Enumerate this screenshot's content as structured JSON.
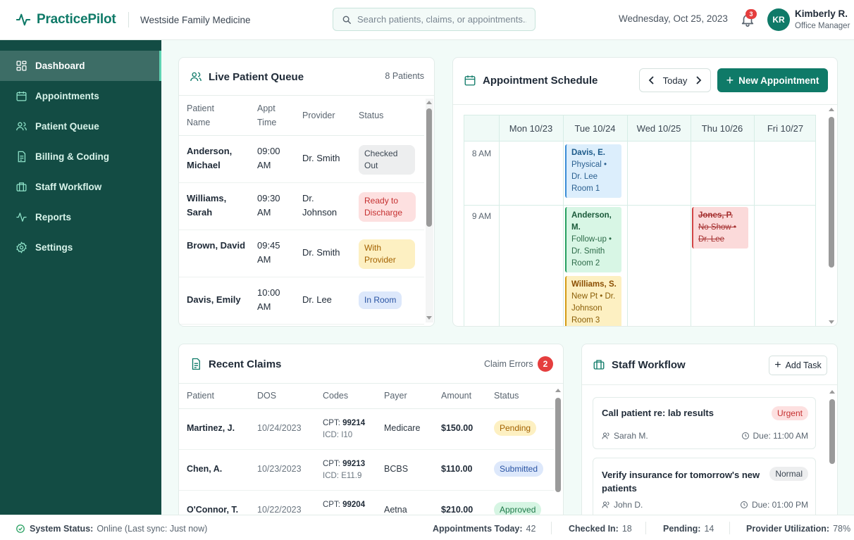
{
  "app": {
    "brand": "PracticePilot",
    "practice": "Westside Family Medicine",
    "search_placeholder": "Search patients, claims, or appointments...",
    "date": "Wednesday, Oct 25, 2023",
    "notifications": "3",
    "user_initials": "KR",
    "user_name": "Kimberly R.",
    "user_role": "Office Manager"
  },
  "sidebar": {
    "items": [
      {
        "label": "Dashboard",
        "icon": "dashboard-icon"
      },
      {
        "label": "Appointments",
        "icon": "calendar-icon"
      },
      {
        "label": "Patient Queue",
        "icon": "users-icon"
      },
      {
        "label": "Billing & Coding",
        "icon": "document-icon"
      },
      {
        "label": "Staff Workflow",
        "icon": "briefcase-icon"
      },
      {
        "label": "Reports",
        "icon": "activity-icon"
      },
      {
        "label": "Settings",
        "icon": "gear-icon"
      }
    ]
  },
  "queue": {
    "title": "Live Patient Queue",
    "count": "8 Patients",
    "headers": [
      "Patient Name",
      "Appt Time",
      "Provider",
      "Status"
    ],
    "rows": [
      {
        "name": "Anderson, Michael",
        "time": "09:00 AM",
        "provider": "Dr. Smith",
        "status": "Checked Out",
        "tone": "gray"
      },
      {
        "name": "Williams, Sarah",
        "time": "09:30 AM",
        "provider": "Dr. Johnson",
        "status": "Ready to Discharge",
        "tone": "red"
      },
      {
        "name": "Brown, David",
        "time": "09:45 AM",
        "provider": "Dr. Smith",
        "status": "With Provider",
        "tone": "yellow"
      },
      {
        "name": "Davis, Emily",
        "time": "10:00 AM",
        "provider": "Dr. Lee",
        "status": "In Room",
        "tone": "blue"
      }
    ]
  },
  "schedule": {
    "title": "Appointment Schedule",
    "nav_label": "Today",
    "new_button": "New Appointment",
    "days": [
      "Mon 10/23",
      "Tue 10/24",
      "Wed 10/25",
      "Thu 10/26",
      "Fri 10/27"
    ],
    "times": [
      "8 AM",
      "9 AM"
    ],
    "appointments": [
      {
        "name": "Davis, E.",
        "lines": [
          "Physical • Dr. Lee",
          "Room 1"
        ],
        "tone": "blue"
      },
      {
        "name": "Anderson, M.",
        "lines": [
          "Follow-up • Dr. Smith",
          "Room 2"
        ],
        "tone": "green"
      },
      {
        "name": "Williams, S.",
        "lines": [
          "New Pt • Dr. Johnson",
          "Room 3"
        ],
        "tone": "yellow"
      },
      {
        "name": "Jones, P.",
        "lines": [
          "No Show • Dr. Lee"
        ],
        "tone": "red"
      }
    ]
  },
  "claims": {
    "title": "Recent Claims",
    "errors_label": "Claim Errors",
    "errors_count": "2",
    "headers": [
      "Patient",
      "DOS",
      "Codes",
      "Payer",
      "Amount",
      "Status"
    ],
    "rows": [
      {
        "patient": "Martinez, J.",
        "dos": "10/24/2023",
        "cpt_label": "CPT:",
        "cpt": "99214",
        "icd": "ICD: I10",
        "payer": "Medicare",
        "amount": "$150.00",
        "status": "Pending",
        "tone": "yellow"
      },
      {
        "patient": "Chen, A.",
        "dos": "10/23/2023",
        "cpt_label": "CPT:",
        "cpt": "99213",
        "icd": "ICD: E11.9",
        "payer": "BCBS",
        "amount": "$110.00",
        "status": "Submitted",
        "tone": "blue"
      },
      {
        "patient": "O'Connor, T.",
        "dos": "10/22/2023",
        "cpt_label": "CPT:",
        "cpt": "99204",
        "icd": "",
        "payer": "Aetna",
        "amount": "$210.00",
        "status": "Approved",
        "tone": "green"
      }
    ]
  },
  "staff": {
    "title": "Staff Workflow",
    "add_label": "Add Task",
    "tasks": [
      {
        "title": "Call patient re: lab results",
        "priority": "Urgent",
        "assignee": "Sarah M.",
        "due": "Due: 11:00 AM"
      },
      {
        "title": "Verify insurance for tomorrow's new patients",
        "priority": "Normal",
        "assignee": "John D.",
        "due": "Due: 01:00 PM"
      }
    ]
  },
  "status": {
    "system_label": "System Status:",
    "system_value": "Online (Last sync: Just now)",
    "stats": [
      {
        "label": "Appointments Today:",
        "value": "42"
      },
      {
        "label": "Checked In:",
        "value": "18"
      },
      {
        "label": "Pending:",
        "value": "14"
      },
      {
        "label": "Provider Utilization:",
        "value": "78%"
      }
    ]
  }
}
